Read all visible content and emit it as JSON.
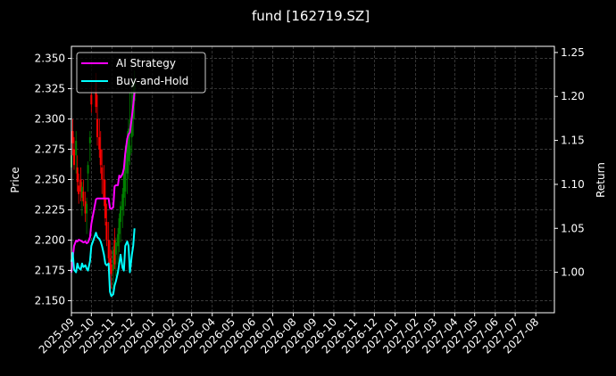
{
  "chart_data": {
    "type": "line",
    "title": "fund [162719.SZ]",
    "ylabel_left": "Price",
    "ylabel_right": "Return",
    "ylim_left": [
      2.14,
      2.36
    ],
    "ylim_right": [
      0.954,
      1.257
    ],
    "xlim": [
      "2025-09-01",
      "2027-08-29"
    ],
    "yticks_left": [
      "2.150",
      "2.175",
      "2.200",
      "2.225",
      "2.250",
      "2.275",
      "2.300",
      "2.325",
      "2.350"
    ],
    "yticks_right": [
      "1.00",
      "1.05",
      "1.10",
      "1.15",
      "1.20",
      "1.25"
    ],
    "xticks": [
      "2025-09",
      "2025-10",
      "2025-11",
      "2025-12",
      "2026-01",
      "2026-02",
      "2026-03",
      "2026-04",
      "2026-05",
      "2026-06",
      "2026-07",
      "2026-08",
      "2026-09",
      "2026-10",
      "2026-11",
      "2026-12",
      "2027-01",
      "2027-02",
      "2027-03",
      "2027-04",
      "2027-05",
      "2027-06",
      "2027-07",
      "2027-08"
    ],
    "grid": true,
    "legend_position": "top-left",
    "colors": {
      "up": "#008000",
      "down": "#ff0000",
      "ai": "#ff00ff",
      "bh": "#00ffff",
      "grid": "#4d4d4d"
    },
    "series": [
      {
        "name": "AI Strategy",
        "axis": "right",
        "x": [
          "2025-09-01",
          "2025-09-03",
          "2025-09-05",
          "2025-09-08",
          "2025-09-10",
          "2025-09-12",
          "2025-09-15",
          "2025-09-17",
          "2025-09-19",
          "2025-09-22",
          "2025-09-24",
          "2025-09-26",
          "2025-09-29",
          "2025-10-01",
          "2025-10-08",
          "2025-10-10",
          "2025-10-13",
          "2025-10-15",
          "2025-10-17",
          "2025-10-20",
          "2025-10-22",
          "2025-10-24",
          "2025-10-27",
          "2025-10-29",
          "2025-10-31",
          "2025-11-03",
          "2025-11-05",
          "2025-11-07",
          "2025-11-10",
          "2025-11-12",
          "2025-11-14",
          "2025-11-17",
          "2025-11-19",
          "2025-11-21",
          "2025-11-24",
          "2025-11-26",
          "2025-11-28",
          "2025-12-01",
          "2025-12-03",
          "2025-12-05"
        ],
        "values": [
          1.0,
          1.017,
          1.03,
          1.036,
          1.035,
          1.037,
          1.036,
          1.035,
          1.034,
          1.035,
          1.033,
          1.034,
          1.04,
          1.055,
          1.083,
          1.084,
          1.084,
          1.084,
          1.084,
          1.084,
          1.084,
          1.084,
          1.084,
          1.073,
          1.072,
          1.074,
          1.098,
          1.099,
          1.099,
          1.11,
          1.108,
          1.112,
          1.118,
          1.135,
          1.152,
          1.157,
          1.159,
          1.177,
          1.19,
          1.205
        ]
      },
      {
        "name": "Buy-and-Hold",
        "axis": "right",
        "x": [
          "2025-09-01",
          "2025-09-03",
          "2025-09-05",
          "2025-09-08",
          "2025-09-10",
          "2025-09-12",
          "2025-09-15",
          "2025-09-17",
          "2025-09-19",
          "2025-09-22",
          "2025-09-24",
          "2025-09-26",
          "2025-09-29",
          "2025-10-01",
          "2025-10-08",
          "2025-10-10",
          "2025-10-13",
          "2025-10-15",
          "2025-10-17",
          "2025-10-20",
          "2025-10-22",
          "2025-10-24",
          "2025-10-27",
          "2025-10-29",
          "2025-10-31",
          "2025-11-03",
          "2025-11-05",
          "2025-11-07",
          "2025-11-10",
          "2025-11-12",
          "2025-11-14",
          "2025-11-17",
          "2025-11-19",
          "2025-11-21",
          "2025-11-24",
          "2025-11-26",
          "2025-11-28",
          "2025-12-01",
          "2025-12-03",
          "2025-12-05"
        ],
        "values": [
          1.012,
          1.022,
          1.003,
          1.0,
          1.01,
          1.005,
          1.003,
          1.01,
          1.006,
          1.008,
          1.004,
          1.002,
          1.013,
          1.03,
          1.045,
          1.04,
          1.038,
          1.035,
          1.03,
          1.02,
          1.01,
          1.008,
          1.01,
          0.978,
          0.973,
          0.975,
          0.985,
          0.99,
          1.0,
          1.01,
          1.02,
          1.005,
          1.002,
          1.03,
          1.035,
          1.03,
          1.0,
          1.02,
          1.03,
          1.05
        ]
      }
    ],
    "candles": {
      "axis": "left",
      "x": [
        "2025-09-01",
        "2025-09-03",
        "2025-09-05",
        "2025-09-08",
        "2025-09-10",
        "2025-09-12",
        "2025-09-15",
        "2025-09-17",
        "2025-09-19",
        "2025-09-22",
        "2025-09-24",
        "2025-09-26",
        "2025-09-29",
        "2025-10-01",
        "2025-10-08",
        "2025-10-10",
        "2025-10-13",
        "2025-10-15",
        "2025-10-17",
        "2025-10-20",
        "2025-10-22",
        "2025-10-24",
        "2025-10-27",
        "2025-10-29",
        "2025-10-31",
        "2025-11-03",
        "2025-11-05",
        "2025-11-07",
        "2025-11-10",
        "2025-11-12",
        "2025-11-14",
        "2025-11-17",
        "2025-11-19",
        "2025-11-21",
        "2025-11-24",
        "2025-11-26",
        "2025-11-28",
        "2025-12-01",
        "2025-12-03",
        "2025-12-05"
      ],
      "open": [
        2.26,
        2.29,
        2.275,
        2.27,
        2.26,
        2.245,
        2.25,
        2.235,
        2.24,
        2.232,
        2.222,
        2.255,
        2.28,
        2.32,
        2.33,
        2.3,
        2.285,
        2.275,
        2.26,
        2.25,
        2.235,
        2.215,
        2.2,
        2.185,
        2.18,
        2.175,
        2.2,
        2.188,
        2.195,
        2.205,
        2.215,
        2.225,
        2.235,
        2.24,
        2.255,
        2.265,
        2.27,
        2.285,
        2.3,
        2.315
      ],
      "high": [
        2.275,
        2.3,
        2.285,
        2.29,
        2.27,
        2.255,
        2.26,
        2.248,
        2.25,
        2.24,
        2.235,
        2.265,
        2.29,
        2.328,
        2.338,
        2.32,
        2.3,
        2.29,
        2.275,
        2.262,
        2.25,
        2.23,
        2.215,
        2.2,
        2.192,
        2.195,
        2.21,
        2.202,
        2.21,
        2.222,
        2.232,
        2.243,
        2.262,
        2.278,
        2.29,
        2.3,
        2.322,
        2.33,
        2.332,
        2.34
      ],
      "low": [
        2.245,
        2.27,
        2.258,
        2.255,
        2.24,
        2.23,
        2.232,
        2.22,
        2.228,
        2.215,
        2.205,
        2.24,
        2.265,
        2.305,
        2.305,
        2.278,
        2.268,
        2.255,
        2.238,
        2.228,
        2.212,
        2.195,
        2.178,
        2.165,
        2.16,
        2.158,
        2.176,
        2.17,
        2.18,
        2.19,
        2.198,
        2.21,
        2.22,
        2.228,
        2.238,
        2.25,
        2.262,
        2.272,
        2.286,
        2.3
      ],
      "close": [
        2.27,
        2.28,
        2.262,
        2.282,
        2.248,
        2.238,
        2.24,
        2.244,
        2.232,
        2.222,
        2.23,
        2.262,
        2.285,
        2.312,
        2.31,
        2.285,
        2.275,
        2.262,
        2.25,
        2.235,
        2.218,
        2.2,
        2.185,
        2.175,
        2.172,
        2.192,
        2.18,
        2.198,
        2.205,
        2.218,
        2.228,
        2.238,
        2.255,
        2.27,
        2.278,
        2.292,
        2.278,
        2.3,
        2.32,
        2.33
      ]
    }
  }
}
